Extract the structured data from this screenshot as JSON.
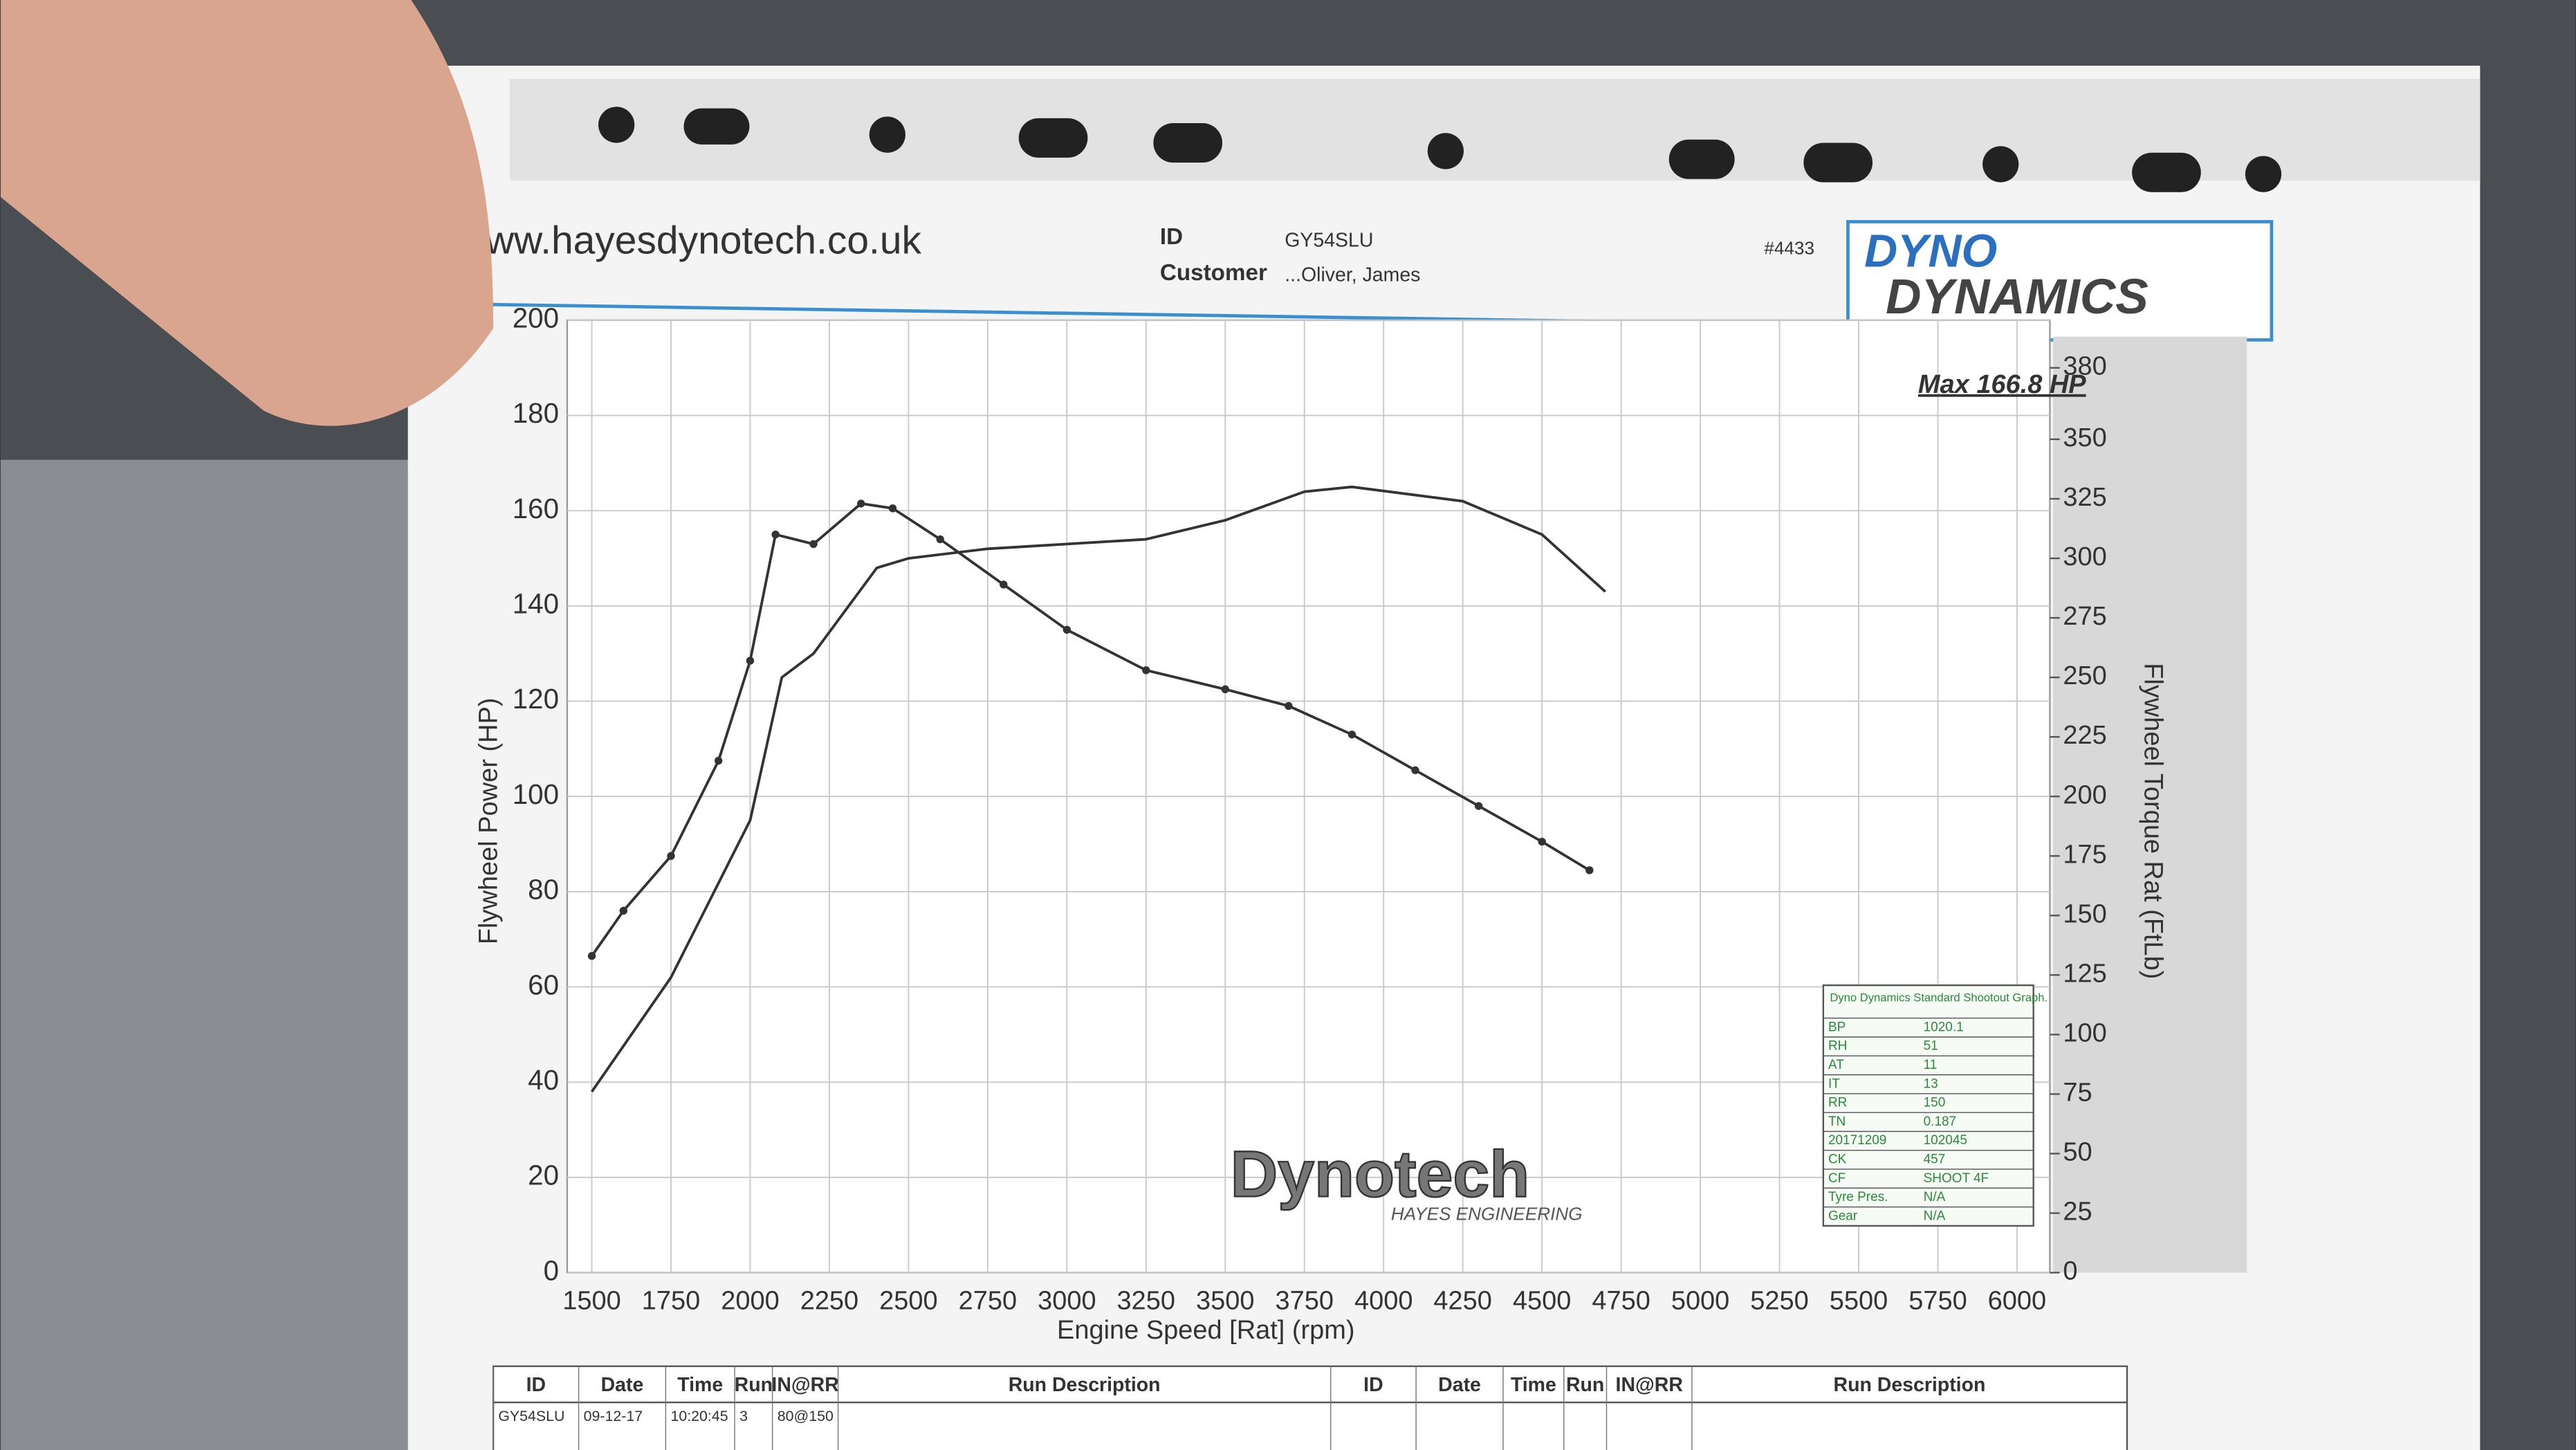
{
  "header": {
    "website": "www.hayesdynotech.co.uk",
    "id_label": "ID",
    "id": "GY54SLU",
    "customer_label": "Customer",
    "customer": "...Oliver, James",
    "sheet_number": "#4433",
    "logo_top": "DYNO",
    "logo_bottom": "DYNAMICS"
  },
  "watermark": {
    "brand": "Dynotech",
    "subtitle": "HAYES ENGINEERING"
  },
  "info_table": {
    "title": "Dyno Dynamics Standard Shootout Graph.",
    "rows": [
      [
        "BP",
        "1020.1"
      ],
      [
        "RH",
        "51"
      ],
      [
        "AT",
        "11"
      ],
      [
        "IT",
        "13"
      ],
      [
        "RR",
        "150"
      ],
      [
        "TN",
        "0.187"
      ],
      [
        "20171209",
        "102045"
      ],
      [
        "CK",
        "457"
      ],
      [
        "CF",
        "SHOOT 4F"
      ],
      [
        "Tyre Pres.",
        "N/A"
      ],
      [
        "Gear",
        "N/A"
      ]
    ]
  },
  "run_table": {
    "headers": [
      "ID",
      "Date",
      "Time",
      "Run",
      "IN@RR",
      "Run Description",
      "ID",
      "Date",
      "Time",
      "Run",
      "IN@RR",
      "Run Description"
    ],
    "rows": [
      [
        "GY54SLU",
        "09-12-17",
        "10:20:45",
        "3",
        "80@150"
      ]
    ]
  },
  "chart_data": {
    "type": "line",
    "xlabel": "Engine Speed [Rat] (rpm)",
    "ylabel": "Flywheel Power (HP)",
    "y2label": "Flywheel Torque Rat (FtLb)",
    "annotation": "Max 166.8 HP",
    "xlim": [
      1500,
      6000
    ],
    "xticks": [
      1500,
      1750,
      2000,
      2250,
      2500,
      2750,
      3000,
      3250,
      3500,
      3750,
      4000,
      4250,
      4500,
      4750,
      5000,
      5250,
      5500,
      5750,
      6000
    ],
    "ylim": [
      0,
      200
    ],
    "yticks": [
      0,
      20,
      40,
      60,
      80,
      100,
      120,
      140,
      160,
      180,
      200
    ],
    "y2lim": [
      0,
      400
    ],
    "y2ticks": [
      0,
      25,
      50,
      75,
      100,
      125,
      150,
      175,
      200,
      225,
      250,
      275,
      300,
      325,
      350,
      380
    ],
    "grid": true,
    "series": [
      {
        "color": "#333333",
        "x": [
          1500,
          1750,
          2000,
          2100,
          2200,
          2400,
          2500,
          2750,
          3000,
          3250,
          3500,
          3750,
          3900,
          4250,
          4500,
          4700
        ],
        "values": [
          38,
          62,
          95,
          125,
          130,
          148,
          150,
          152,
          153,
          154,
          158,
          164,
          165,
          162,
          155,
          143
        ]
      },
      {
        "color": "#333333",
        "axis": "y2",
        "markers": true,
        "x": [
          1500,
          1600,
          1750,
          1900,
          2000,
          2080,
          2200,
          2350,
          2450,
          2600,
          2800,
          3000,
          3250,
          3500,
          3700,
          3900,
          4100,
          4300,
          4500,
          4650
        ],
        "values": [
          133,
          152,
          175,
          215,
          257,
          310,
          306,
          323,
          321,
          308,
          289,
          270,
          253,
          245,
          238,
          226,
          211,
          196,
          181,
          169
        ]
      }
    ]
  }
}
